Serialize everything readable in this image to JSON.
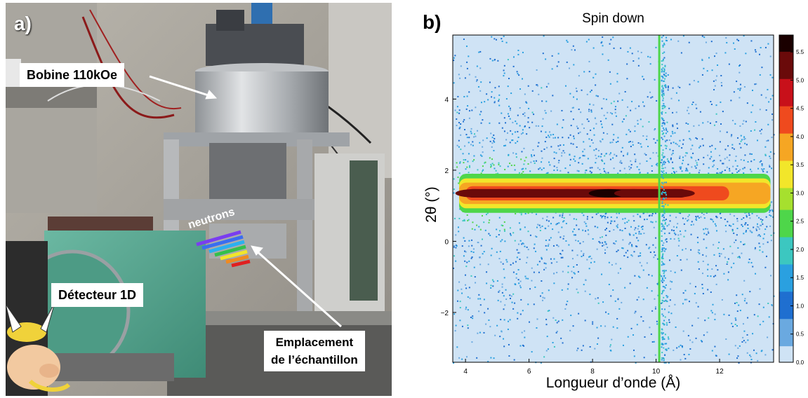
{
  "panel_a": {
    "letter": "a)",
    "labels": {
      "bobine": "Bobine 110kOe",
      "detecteur": "Détecteur 1D",
      "emplacement_line1": "Emplacement",
      "emplacement_line2": "de l’échantillon",
      "neutrons": "neutrons"
    },
    "colors": {
      "detector_green": "#5aa58f",
      "callout_bg": "#ffffff"
    }
  },
  "panel_b": {
    "letter": "b)"
  },
  "chart_data": {
    "type": "heatmap",
    "title": "Spin down",
    "xlabel": "Longueur d’onde (Å)",
    "ylabel": "2θ (°)",
    "xlim": [
      3.6,
      13.7
    ],
    "ylim": [
      -3.4,
      5.8
    ],
    "x_ticks": [
      4,
      6,
      8,
      10,
      12
    ],
    "x_tick_labels": [
      "4",
      "6",
      "8",
      "10",
      "12"
    ],
    "y_ticks": [
      -2,
      0,
      2,
      4
    ],
    "y_tick_labels": [
      "−2",
      "0",
      "2",
      "4"
    ],
    "colorbar": {
      "range": [
        0,
        5.8
      ],
      "ticks": [
        0,
        0.5,
        1.0,
        1.5,
        2.0,
        2.5,
        3.0,
        3.5,
        4.0,
        4.5,
        5.0,
        5.5
      ],
      "tick_labels": [
        "0.0",
        "0.5",
        "1.0",
        "1.5",
        "2.0",
        "2.5",
        "3.0",
        "3.5",
        "4.0",
        "4.5",
        "5.0",
        "5.5"
      ],
      "colors": [
        "#cfe3f5",
        "#6aa9e0",
        "#1f6fd0",
        "#2aa0e0",
        "#3cc7c0",
        "#4ed64a",
        "#a6e02e",
        "#f2e62a",
        "#f6a623",
        "#ef4a1e",
        "#c8101a",
        "#6a0a0a",
        "#1a0000"
      ]
    },
    "background_color": "#cfe3f5",
    "features": {
      "specular_band": {
        "two_theta": 1.35,
        "x_start": 3.8,
        "x_end": 13.6,
        "peak_x": 8.5,
        "peak_intensity": 5.8
      },
      "direct_beam_line": {
        "x": 10.1,
        "color": "#4ed64a"
      }
    }
  }
}
